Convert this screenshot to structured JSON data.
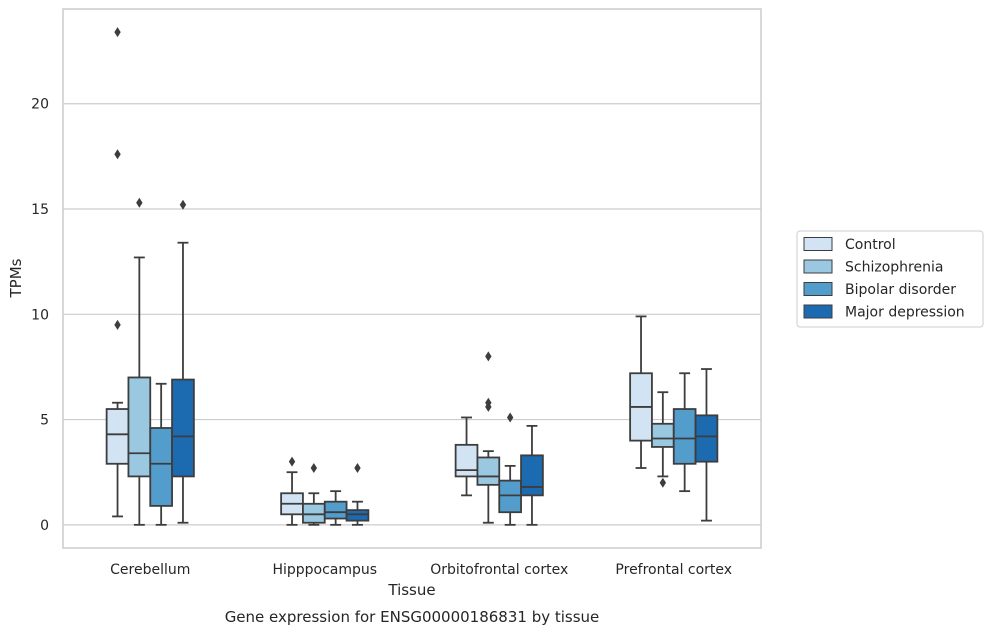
{
  "chart_data": {
    "type": "box",
    "caption": "Gene expression for ENSG00000186831 by tissue",
    "xlabel": "Tissue",
    "ylabel": "TPMs",
    "ylim": [
      -1.1,
      24.5
    ],
    "yticks": [
      0,
      5,
      10,
      15,
      20
    ],
    "grid": true,
    "legend_placement": "right",
    "categories": [
      "Cerebellum",
      "Hipppocampus",
      "Orbitofrontal cortex",
      "Prefrontal cortex"
    ],
    "series": [
      {
        "name": "Control",
        "color": "#d2e3f3",
        "boxes": [
          {
            "whislo": 0.4,
            "q1": 2.9,
            "med": 4.3,
            "q3": 5.5,
            "whishi": 5.8,
            "fliers": [
              9.5,
              17.6,
              23.4
            ]
          },
          {
            "whislo": 0.0,
            "q1": 0.5,
            "med": 1.0,
            "q3": 1.5,
            "whishi": 2.5,
            "fliers": [
              3.0
            ]
          },
          {
            "whislo": 1.4,
            "q1": 2.3,
            "med": 2.6,
            "q3": 3.8,
            "whishi": 5.1,
            "fliers": []
          },
          {
            "whislo": 2.7,
            "q1": 4.0,
            "med": 5.6,
            "q3": 7.2,
            "whishi": 9.9,
            "fliers": []
          }
        ]
      },
      {
        "name": "Schizophrenia",
        "color": "#9ac8e0",
        "boxes": [
          {
            "whislo": 0.0,
            "q1": 2.3,
            "med": 3.4,
            "q3": 7.0,
            "whishi": 12.7,
            "fliers": [
              15.3
            ]
          },
          {
            "whislo": 0.0,
            "q1": 0.1,
            "med": 0.5,
            "q3": 1.0,
            "whishi": 1.5,
            "fliers": [
              2.7
            ]
          },
          {
            "whislo": 0.1,
            "q1": 1.9,
            "med": 2.3,
            "q3": 3.2,
            "whishi": 3.5,
            "fliers": [
              5.6,
              5.8,
              8.0
            ]
          },
          {
            "whislo": 2.3,
            "q1": 3.7,
            "med": 4.1,
            "q3": 4.8,
            "whishi": 6.3,
            "fliers": [
              2.0
            ]
          }
        ]
      },
      {
        "name": "Bipolar disorder",
        "color": "#529dcc",
        "boxes": [
          {
            "whislo": 0.0,
            "q1": 0.9,
            "med": 2.9,
            "q3": 4.6,
            "whishi": 6.7,
            "fliers": []
          },
          {
            "whislo": 0.0,
            "q1": 0.3,
            "med": 0.6,
            "q3": 1.1,
            "whishi": 1.6,
            "fliers": []
          },
          {
            "whislo": 0.0,
            "q1": 0.6,
            "med": 1.4,
            "q3": 2.1,
            "whishi": 2.8,
            "fliers": [
              5.1
            ]
          },
          {
            "whislo": 1.6,
            "q1": 2.9,
            "med": 4.1,
            "q3": 5.5,
            "whishi": 7.2,
            "fliers": []
          }
        ]
      },
      {
        "name": "Major depression",
        "color": "#1c6aaf",
        "boxes": [
          {
            "whislo": 0.1,
            "q1": 2.3,
            "med": 4.2,
            "q3": 6.9,
            "whishi": 13.4,
            "fliers": [
              15.2
            ]
          },
          {
            "whislo": 0.0,
            "q1": 0.2,
            "med": 0.5,
            "q3": 0.7,
            "whishi": 1.1,
            "fliers": [
              2.7
            ]
          },
          {
            "whislo": 0.0,
            "q1": 1.4,
            "med": 1.8,
            "q3": 3.3,
            "whishi": 4.7,
            "fliers": []
          },
          {
            "whislo": 0.2,
            "q1": 3.0,
            "med": 4.2,
            "q3": 5.2,
            "whishi": 7.4,
            "fliers": []
          }
        ]
      }
    ]
  }
}
